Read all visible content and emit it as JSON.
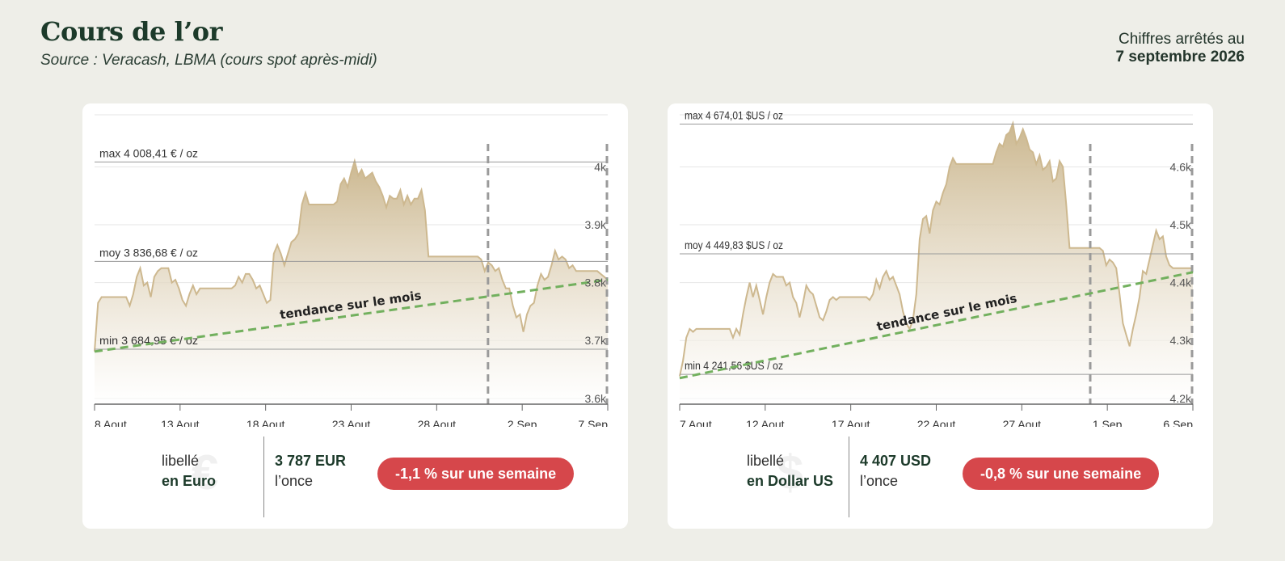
{
  "header": {
    "title": "Cours de l’or",
    "subtitle": "Source : Veracash, LBMA (cours spot après-midi)",
    "date_prefix": "Chiffres arrêtés au",
    "date": "7 septembre 2026"
  },
  "colors": {
    "background": "#eeeee8",
    "area_line": "#cdb88f",
    "area_fill_top": "#c9b48a",
    "trend": "#72b05e",
    "badge": "#d6474b",
    "title": "#1c3a2a"
  },
  "cards": [
    {
      "id": "eur",
      "currency_symbol": "€",
      "label_prefix": "libellé",
      "label_currency": "en Euro",
      "price": "3 787 EUR",
      "price_unit": "l’once",
      "weekly_change": "-1,1 % sur une semaine",
      "chart_data": {
        "type": "area",
        "x_start": "2026-08-08",
        "x_end": "2026-09-07",
        "x_ticks": [
          "8 Aout",
          "13 Aout",
          "18 Aout",
          "23 Aout",
          "28 Aout",
          "2 Sep",
          "7 Sep"
        ],
        "y_ticks": [
          "4k",
          "3.9k",
          "3.8k",
          "3.7k",
          "3.6k"
        ],
        "y_tick_values": [
          4000,
          3900,
          3800,
          3700,
          3600
        ],
        "ylim": [
          3590,
          4090
        ],
        "reference_lines": [
          {
            "label": "max 4 008,41 € / oz",
            "value": 4008.41
          },
          {
            "label": "moy 3 836,68 € / oz",
            "value": 3836.68
          },
          {
            "label": "min 3 684,95 € / oz",
            "value": 3684.95
          }
        ],
        "trend_label": "tendance sur le mois",
        "trend": [
          3681,
          3805
        ],
        "week_markers": [
          "2026-08-31",
          "2026-09-07"
        ],
        "series": [
          {
            "values": [
              3681,
              3765,
              3775,
              3775,
              3775,
              3775,
              3775,
              3775,
              3775,
              3775,
              3760,
              3780,
              3810,
              3825,
              3795,
              3800,
              3775,
              3810,
              3820,
              3825,
              3825,
              3825,
              3800,
              3805,
              3790,
              3770,
              3760,
              3780,
              3795,
              3780,
              3790,
              3790,
              3790,
              3790,
              3790,
              3790,
              3790,
              3790,
              3790,
              3790,
              3795,
              3810,
              3800,
              3815,
              3815,
              3805,
              3790,
              3795,
              3780,
              3765,
              3770,
              3850,
              3865,
              3850,
              3830,
              3850,
              3870,
              3875,
              3885,
              3935,
              3955,
              3935,
              3935,
              3935,
              3935,
              3935,
              3935,
              3935,
              3935,
              3940,
              3970,
              3980,
              3965,
              3990,
              4010,
              3985,
              3995,
              3980,
              3985,
              3990,
              3975,
              3965,
              3950,
              3930,
              3950,
              3945,
              3945,
              3960,
              3935,
              3950,
              3935,
              3945,
              3945,
              3960,
              3925,
              3845,
              3845,
              3845,
              3845,
              3845,
              3845,
              3845,
              3845,
              3845,
              3845,
              3845,
              3845,
              3845,
              3845,
              3845,
              3840,
              3820,
              3835,
              3830,
              3820,
              3825,
              3805,
              3790,
              3790,
              3760,
              3740,
              3745,
              3715,
              3745,
              3760,
              3765,
              3795,
              3815,
              3805,
              3810,
              3830,
              3855,
              3840,
              3845,
              3840,
              3825,
              3830,
              3820,
              3820,
              3820,
              3820,
              3820,
              3820,
              3820,
              3815,
              3810,
              3805
            ]
          }
        ]
      }
    },
    {
      "id": "usd",
      "currency_symbol": "$",
      "label_prefix": "libellé",
      "label_currency": "en Dollar US",
      "price": "4 407 USD",
      "price_unit": "l’once",
      "weekly_change": "-0,8 % sur une semaine",
      "chart_data": {
        "type": "area",
        "x_start": "2026-08-07",
        "x_end": "2026-09-06",
        "x_ticks": [
          "7 Aout",
          "12 Aout",
          "17 Aout",
          "22 Aout",
          "27 Aout",
          "1 Sep",
          "6 Sep"
        ],
        "y_ticks": [
          "4.6k",
          "4.5k",
          "4.4k",
          "4.3k",
          "4.2k"
        ],
        "y_tick_values": [
          4600,
          4500,
          4400,
          4300,
          4200
        ],
        "ylim": [
          4190,
          4690
        ],
        "reference_lines": [
          {
            "label": "max 4 674,01 $US / oz",
            "value": 4674.01
          },
          {
            "label": "moy 4 449,83 $US / oz",
            "value": 4449.83
          },
          {
            "label": "min 4 241,56 $US / oz",
            "value": 4241.56
          }
        ],
        "trend_label": "tendance sur le mois",
        "trend": [
          4235,
          4418
        ],
        "week_markers": [
          "2026-08-31",
          "2026-09-06"
        ],
        "series": [
          {
            "values": [
              4238,
              4265,
              4305,
              4320,
              4315,
              4320,
              4320,
              4320,
              4320,
              4320,
              4320,
              4320,
              4320,
              4320,
              4320,
              4320,
              4305,
              4320,
              4310,
              4345,
              4375,
              4400,
              4375,
              4395,
              4370,
              4345,
              4375,
              4400,
              4415,
              4410,
              4410,
              4410,
              4395,
              4400,
              4375,
              4365,
              4340,
              4365,
              4395,
              4385,
              4380,
              4360,
              4340,
              4335,
              4350,
              4370,
              4375,
              4370,
              4375,
              4375,
              4375,
              4375,
              4375,
              4375,
              4375,
              4375,
              4375,
              4370,
              4380,
              4405,
              4390,
              4410,
              4420,
              4405,
              4410,
              4395,
              4380,
              4350,
              4330,
              4320,
              4335,
              4380,
              4475,
              4510,
              4515,
              4485,
              4525,
              4540,
              4535,
              4555,
              4570,
              4600,
              4615,
              4605,
              4605,
              4605,
              4605,
              4605,
              4605,
              4605,
              4605,
              4605,
              4605,
              4605,
              4605,
              4625,
              4640,
              4635,
              4655,
              4660,
              4675,
              4640,
              4650,
              4665,
              4650,
              4630,
              4625,
              4605,
              4620,
              4595,
              4600,
              4610,
              4575,
              4580,
              4610,
              4600,
              4535,
              4460,
              4460,
              4460,
              4460,
              4460,
              4460,
              4460,
              4460,
              4460,
              4460,
              4455,
              4430,
              4440,
              4435,
              4425,
              4380,
              4330,
              4310,
              4290,
              4320,
              4345,
              4375,
              4420,
              4415,
              4440,
              4465,
              4490,
              4475,
              4480,
              4445,
              4430,
              4425,
              4425,
              4425,
              4425,
              4425,
              4425,
              4425
            ]
          }
        ]
      }
    }
  ]
}
